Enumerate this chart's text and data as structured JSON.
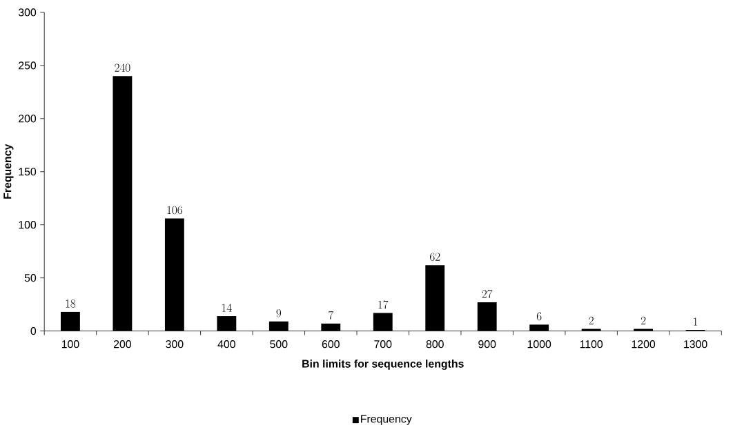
{
  "chart_data": {
    "type": "bar",
    "xlabel": "Bin limits for sequence lengths",
    "ylabel": "Frequency",
    "categories": [
      "100",
      "200",
      "300",
      "400",
      "500",
      "600",
      "700",
      "800",
      "900",
      "1000",
      "1100",
      "1200",
      "1300"
    ],
    "series": [
      {
        "name": "Frequency",
        "color": "#000000",
        "values": [
          18,
          240,
          106,
          14,
          9,
          7,
          17,
          62,
          27,
          6,
          2,
          2,
          1
        ]
      }
    ],
    "ylim": [
      0,
      300
    ],
    "yticks": [
      0,
      50,
      100,
      150,
      200,
      250,
      300
    ],
    "data_labels": true,
    "legend": "bottom",
    "grid": false
  }
}
